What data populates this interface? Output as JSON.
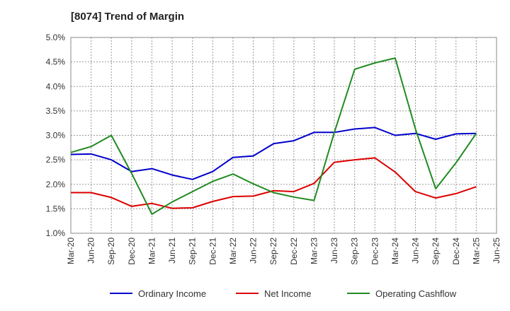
{
  "chart_data": {
    "type": "line",
    "title": "[8074]  Trend of Margin",
    "xlabel": "",
    "ylabel": "",
    "categories": [
      "Mar-20",
      "Jun-20",
      "Sep-20",
      "Dec-20",
      "Mar-21",
      "Jun-21",
      "Sep-21",
      "Dec-21",
      "Mar-22",
      "Jun-22",
      "Sep-22",
      "Dec-22",
      "Mar-23",
      "Jun-23",
      "Sep-23",
      "Dec-23",
      "Mar-24",
      "Jun-24",
      "Sep-24",
      "Dec-24",
      "Mar-25",
      "Jun-25"
    ],
    "ylim": [
      1.0,
      5.0
    ],
    "yticks": [
      1.0,
      1.5,
      2.0,
      2.5,
      3.0,
      3.5,
      4.0,
      4.5,
      5.0
    ],
    "ytick_labels": [
      "1.0%",
      "1.5%",
      "2.0%",
      "2.5%",
      "3.0%",
      "3.5%",
      "4.0%",
      "4.5%",
      "5.0%"
    ],
    "grid": true,
    "legend_position": "bottom",
    "series": [
      {
        "name": "Ordinary Income",
        "color": "#0000cc",
        "values": [
          2.61,
          2.62,
          2.5,
          2.26,
          2.32,
          2.19,
          2.1,
          2.26,
          2.55,
          2.58,
          2.83,
          2.89,
          3.06,
          3.06,
          3.13,
          3.16,
          3.0,
          3.04,
          2.92,
          3.03,
          3.04,
          null
        ]
      },
      {
        "name": "Net Income",
        "color": "#dd0000",
        "values": [
          1.83,
          1.83,
          1.73,
          1.55,
          1.61,
          1.51,
          1.52,
          1.65,
          1.75,
          1.76,
          1.87,
          1.85,
          2.02,
          2.45,
          2.5,
          2.54,
          2.25,
          1.85,
          1.72,
          1.81,
          1.95,
          null
        ]
      },
      {
        "name": "Operating Cashflow",
        "color": "#228b22",
        "values": [
          2.65,
          2.77,
          3.0,
          2.22,
          1.39,
          1.64,
          1.85,
          2.06,
          2.21,
          2.01,
          1.83,
          1.74,
          1.67,
          3.06,
          4.35,
          4.48,
          4.58,
          3.13,
          1.91,
          2.44,
          3.04,
          null
        ]
      }
    ]
  }
}
